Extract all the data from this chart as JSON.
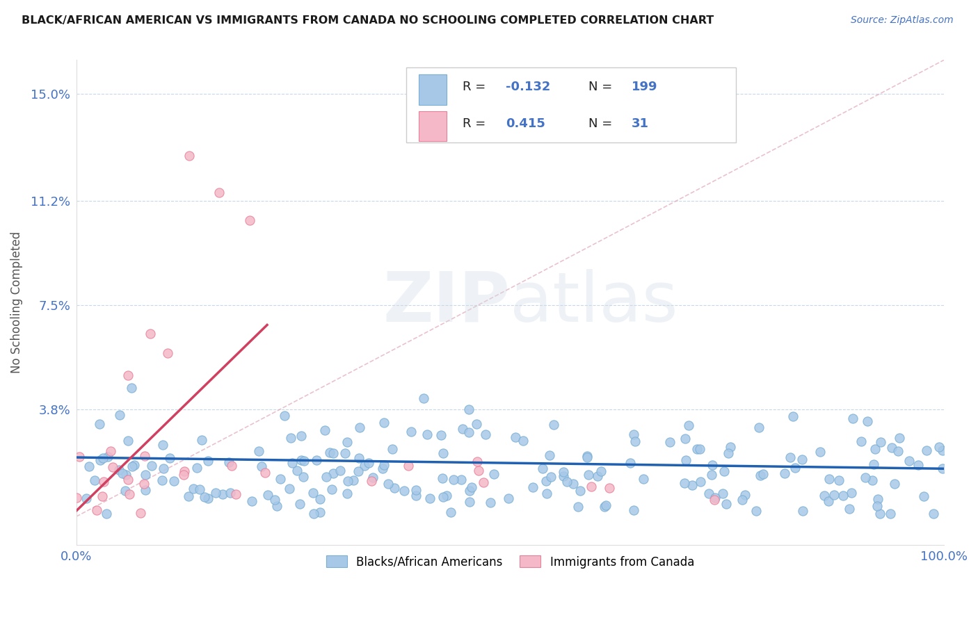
{
  "title": "BLACK/AFRICAN AMERICAN VS IMMIGRANTS FROM CANADA NO SCHOOLING COMPLETED CORRELATION CHART",
  "source_text": "Source: ZipAtlas.com",
  "ylabel": "No Schooling Completed",
  "y_tick_labels": [
    "3.8%",
    "7.5%",
    "11.2%",
    "15.0%"
  ],
  "y_tick_values": [
    0.038,
    0.075,
    0.112,
    0.15
  ],
  "xlim": [
    0.0,
    1.0
  ],
  "ylim": [
    -0.01,
    0.162
  ],
  "watermark_zip": "ZIP",
  "watermark_atlas": "atlas",
  "blue_color": "#a8c8e8",
  "blue_edge_color": "#7aafd4",
  "pink_color": "#f4b8c8",
  "pink_edge_color": "#e8809a",
  "line_blue_color": "#2060b0",
  "line_pink_color": "#d04060",
  "tick_label_color": "#4472C4",
  "grid_color": "#c8d8e8",
  "diagonal_color": "#e0a8b8",
  "background_color": "#ffffff",
  "blue_trend_intercept": 0.021,
  "blue_trend_slope": -0.004,
  "pink_trend_x0": 0.0,
  "pink_trend_y0": 0.002,
  "pink_trend_x1": 0.22,
  "pink_trend_y1": 0.068
}
